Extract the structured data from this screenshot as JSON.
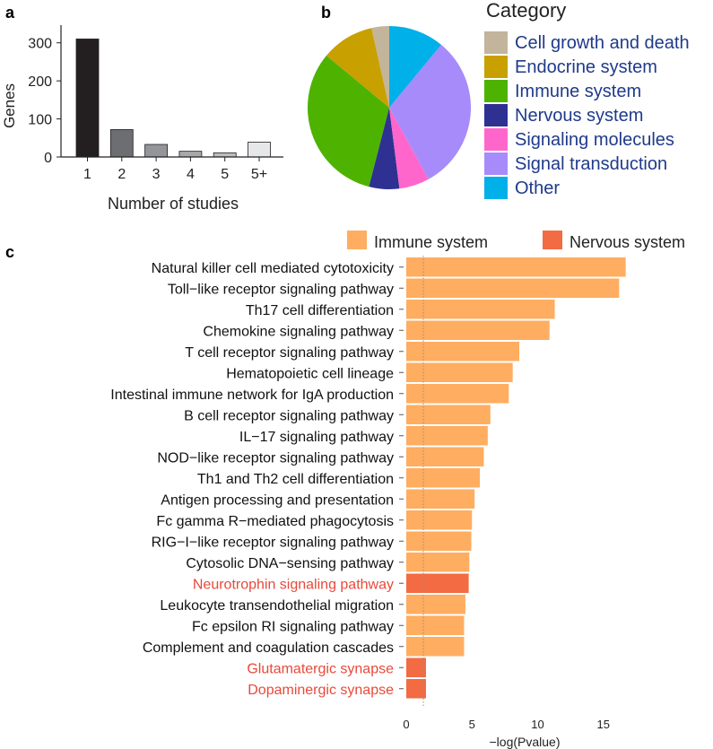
{
  "panel_labels": {
    "a": "a",
    "b": "b",
    "c": "c"
  },
  "chart_data": [
    {
      "panel": "a",
      "type": "bar",
      "categories": [
        "1",
        "2",
        "3",
        "4",
        "5",
        "5+"
      ],
      "values": [
        310,
        72,
        33,
        15,
        11,
        39
      ],
      "bar_colors": [
        "#231f20",
        "#6d6e71",
        "#939598",
        "#a7a9ac",
        "#bcbec0",
        "#e6e7e8"
      ],
      "xlabel": "Number of studies",
      "ylabel": "Genes",
      "ylim": [
        0,
        330
      ],
      "yticks": [
        0,
        100,
        200,
        300
      ]
    },
    {
      "panel": "b",
      "type": "pie",
      "legend_title": "Category",
      "slices": [
        {
          "label": "Cell growth and death",
          "value": 3.5,
          "color": "#c2b59b"
        },
        {
          "label": "Endocrine system",
          "value": 10.5,
          "color": "#c8a000"
        },
        {
          "label": "Immune system",
          "value": 32,
          "color": "#4db300"
        },
        {
          "label": "Nervous system",
          "value": 6,
          "color": "#2e3192"
        },
        {
          "label": "Signaling molecules",
          "value": 6,
          "color": "#ff66cc"
        },
        {
          "label": "Signal transduction",
          "value": 31,
          "color": "#a78bfa"
        },
        {
          "label": "Other",
          "value": 11,
          "color": "#00b0e8"
        }
      ]
    },
    {
      "panel": "c",
      "type": "bar",
      "orientation": "horizontal",
      "xlabel": "−log(Pvalue)",
      "xlim": [
        0,
        17
      ],
      "xticks": [
        0,
        5,
        10,
        15
      ],
      "threshold": 1.3,
      "legend": [
        {
          "name": "Immune system",
          "color": "#ffad60"
        },
        {
          "name": "Nervous system",
          "color": "#f26b43"
        }
      ],
      "categories": [
        "Natural killer cell mediated cytotoxicity",
        "Toll−like receptor signaling pathway",
        "Th17 cell differentiation",
        "Chemokine signaling pathway",
        "T cell receptor signaling pathway",
        "Hematopoietic cell lineage",
        "Intestinal immune network for IgA production",
        "B cell receptor signaling pathway",
        "IL−17 signaling pathway",
        "NOD−like receptor signaling pathway",
        "Th1 and Th2 cell differentiation",
        "Antigen processing and presentation",
        "Fc gamma R−mediated phagocytosis",
        "RIG−I−like receptor signaling pathway",
        "Cytosolic DNA−sensing pathway",
        "Neurotrophin signaling pathway",
        "Leukocyte transendothelial migration",
        "Fc epsilon RI signaling pathway",
        "Complement and coagulation cascades",
        "Glutamatergic synapse",
        "Dopaminergic synapse"
      ],
      "values": [
        16.7,
        16.2,
        11.3,
        10.9,
        8.6,
        8.1,
        7.8,
        6.4,
        6.2,
        5.9,
        5.6,
        5.2,
        5.0,
        4.95,
        4.8,
        4.75,
        4.5,
        4.4,
        4.4,
        1.5,
        1.5
      ],
      "groups": [
        "Immune system",
        "Immune system",
        "Immune system",
        "Immune system",
        "Immune system",
        "Immune system",
        "Immune system",
        "Immune system",
        "Immune system",
        "Immune system",
        "Immune system",
        "Immune system",
        "Immune system",
        "Immune system",
        "Immune system",
        "Nervous system",
        "Immune system",
        "Immune system",
        "Immune system",
        "Nervous system",
        "Nervous system"
      ],
      "label_colors": {
        "Immune system": "#111111",
        "Nervous system": "#e8493a"
      }
    }
  ]
}
